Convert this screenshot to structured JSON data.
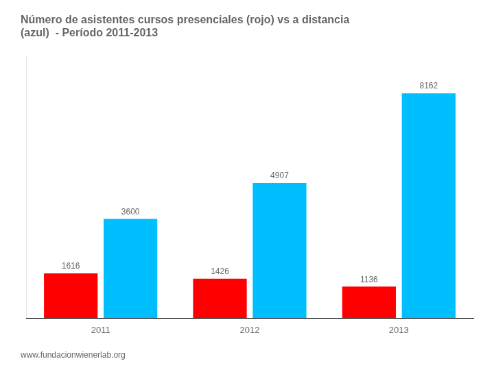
{
  "chart_data": {
    "type": "bar",
    "title": [
      "Número de asistentes cursos presenciales (rojo) vs a distancia",
      "(azul)  - Período 2011-2013"
    ],
    "categories": [
      "2011",
      "2012",
      "2013"
    ],
    "series": [
      {
        "color": "#FF0000",
        "values": [
          1616,
          1426,
          1136
        ]
      },
      {
        "color": "#00BFFF",
        "values": [
          3600,
          4907,
          8162
        ]
      }
    ],
    "ylim": [
      0,
      9500
    ],
    "yticks": [],
    "tick_labels": "x",
    "grid": false,
    "legend": false,
    "data_labels": true,
    "annotations": [
      "www.fundacionwienerlab.org"
    ]
  }
}
